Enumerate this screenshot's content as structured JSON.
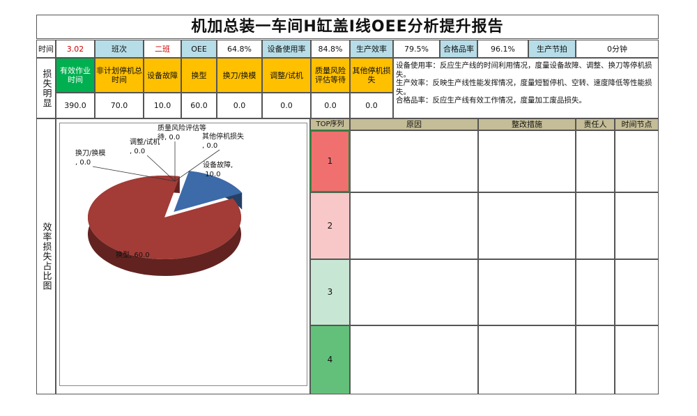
{
  "title": "机加总装一车间H缸盖I线OEE分析提升报告",
  "info": {
    "time_label": "时间",
    "time_value": "3.02",
    "shift_label": "班次",
    "shift_value": "二班",
    "oee_label": "OEE",
    "oee_value": "64.8%",
    "utilization_label": "设备使用率",
    "utilization_value": "84.8%",
    "efficiency_label": "生产效率",
    "efficiency_value": "79.5%",
    "quality_label": "合格品率",
    "quality_value": "96.1%",
    "takt_label": "生产节拍",
    "takt_value": "0分钟"
  },
  "loss": {
    "section_label": "损失明显",
    "headers": [
      "有效作业时间",
      "非计划停机总时间",
      "设备故障",
      "换型",
      "换刀/换模",
      "调整/试机",
      "质量风险评估等待",
      "其他停机损失"
    ],
    "values": [
      "390.0",
      "70.0",
      "10.0",
      "60.0",
      "0.0",
      "0.0",
      "0.0",
      "0.0"
    ],
    "description": "设备使用率：反应生产线的时间利用情况，度量设备故障、调整、换刀等停机损失。\n生产效率：反映生产线性能发挥情况，度量短暂停机、空转、速度降低等性能损失。\n合格品率：反应生产线有效工作情况，度量加工废品损失。"
  },
  "efficiency_section_label": "效率损失占比图",
  "chart_data": {
    "type": "pie",
    "slices": [
      {
        "name": "设备故障",
        "value": 10.0,
        "label": "设备故障, 10.0",
        "color": "#3d6aa8"
      },
      {
        "name": "换型",
        "value": 60.0,
        "label": "换型, 60.0",
        "color": "#a33b36"
      },
      {
        "name": "换刀/换模",
        "value": 0.0,
        "label": "换刀/换模, 0.0",
        "color": "#8aa64a"
      },
      {
        "name": "调整/试机",
        "value": 0.0,
        "label": "调整/试机, 0.0",
        "color": "#7a5ca0"
      },
      {
        "name": "质量风险评估等待",
        "value": 0.0,
        "label": "质量风险评估等待, 0.0",
        "color": "#3fa0b8"
      },
      {
        "name": "其他停机损失",
        "value": 0.0,
        "label": "其他停机损失, 0.0",
        "color": "#e08a2e"
      }
    ]
  },
  "top": {
    "headers": [
      "TOP序列",
      "原因",
      "整改措施",
      "责任人",
      "时间节点"
    ],
    "ranks": [
      "1",
      "2",
      "3",
      "4"
    ],
    "rank_colors": [
      "#f07070",
      "#f8c8c8",
      "#c8e6d4",
      "#63c07a"
    ]
  }
}
